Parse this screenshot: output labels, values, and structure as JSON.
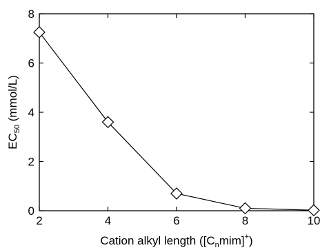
{
  "chart_data": {
    "type": "line",
    "title": "",
    "x": [
      2,
      4,
      6,
      8,
      10
    ],
    "series": [
      {
        "values": [
          7.25,
          3.6,
          0.7,
          0.1,
          0.02
        ],
        "marker": "diamond-open",
        "color": "#000000"
      }
    ],
    "xlim": [
      2,
      10
    ],
    "ylim": [
      0,
      8
    ],
    "xticks": [
      "2",
      "4",
      "6",
      "8",
      "10"
    ],
    "yticks": [
      "0",
      "2",
      "4",
      "6",
      "8"
    ],
    "xlabel": {
      "pre": "Cation alkyl length ([C",
      "sub": "n",
      "mid": "mim]",
      "sup": "+",
      "post": ")"
    },
    "ylabel": {
      "pre": "EC",
      "sub": "50",
      "post": " (mmol/L)"
    },
    "grid": false,
    "legend": "none"
  }
}
